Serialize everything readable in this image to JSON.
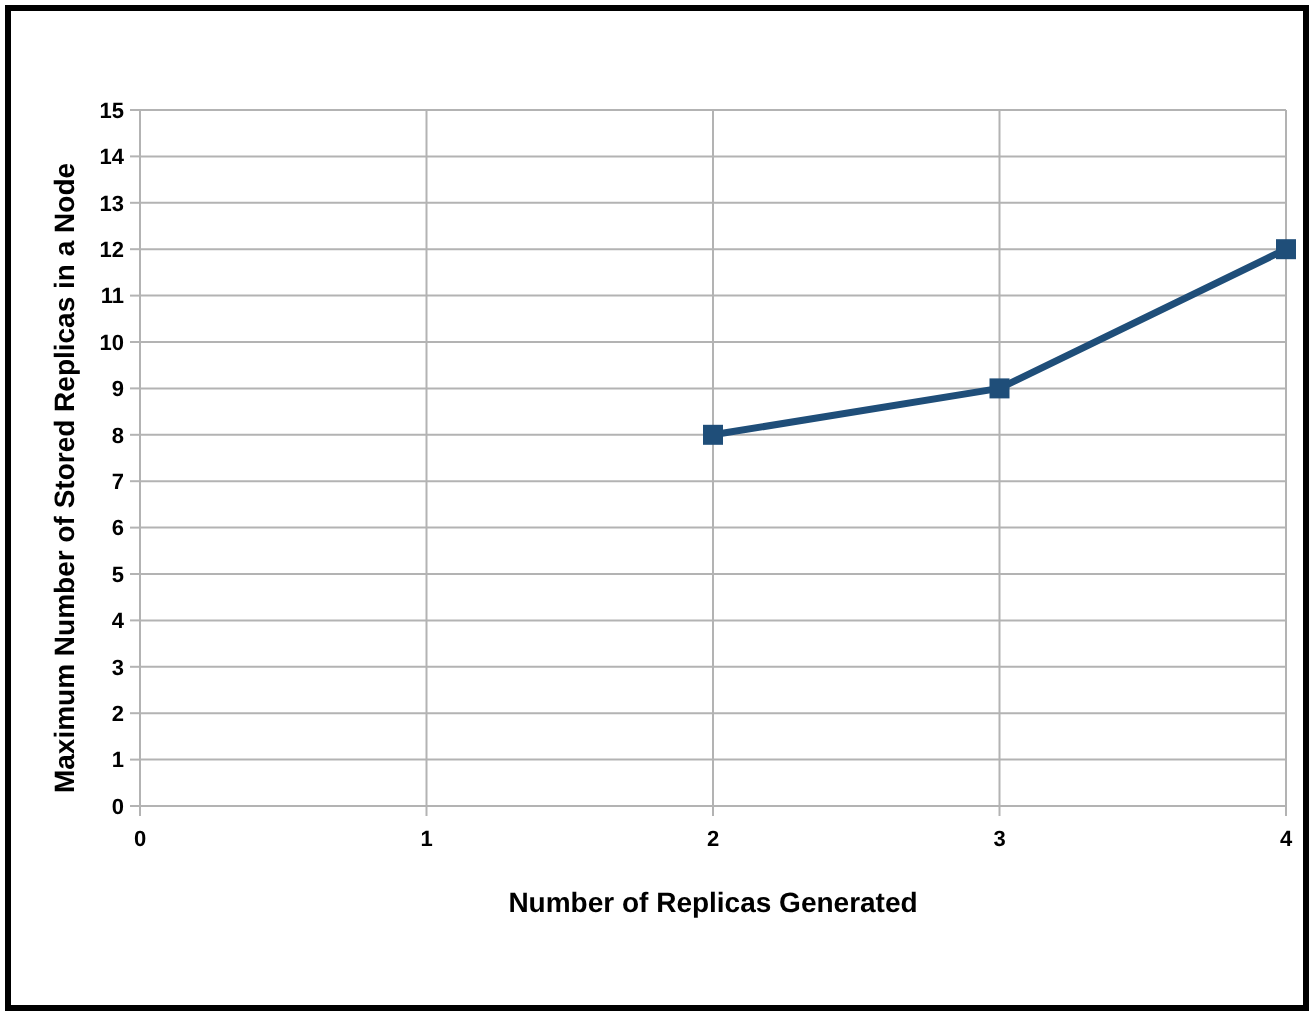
{
  "chart_data": {
    "type": "line",
    "xlabel": "Number of Replicas Generated",
    "ylabel": "Maximum Number of Stored Replicas in a Node",
    "x": [
      2,
      3,
      4
    ],
    "series": [
      {
        "color": "#1f4e79",
        "values": [
          8,
          9,
          12
        ]
      }
    ],
    "xlim": [
      0,
      4
    ],
    "xticks": [
      0,
      1,
      2,
      3,
      4
    ],
    "ylim": [
      0,
      15
    ],
    "yticks": [
      0,
      1,
      2,
      3,
      4,
      5,
      6,
      7,
      8,
      9,
      10,
      11,
      12,
      13,
      14,
      15
    ],
    "grid": true,
    "marker": "square",
    "line_style": "solid"
  }
}
